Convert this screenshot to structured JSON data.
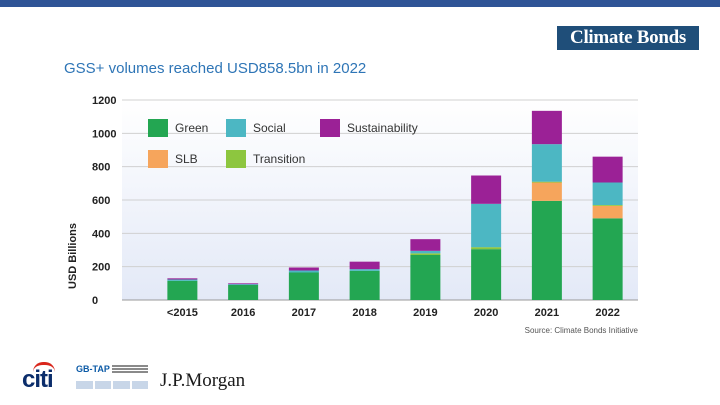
{
  "header": {
    "logo_text": "Climate Bonds",
    "title": "GSS+ volumes reached USD858.5bn in 2022"
  },
  "chart_data": {
    "type": "bar",
    "stacked": true,
    "title": "",
    "xlabel": "",
    "ylabel": "USD Billions",
    "ylim": [
      0,
      1200
    ],
    "yticks": [
      0,
      200,
      400,
      600,
      800,
      1000,
      1200
    ],
    "categories": [
      "<2015",
      "2016",
      "2017",
      "2018",
      "2019",
      "2020",
      "2021",
      "2022"
    ],
    "series": [
      {
        "name": "Green",
        "color": "#23a652",
        "values": [
          115,
          90,
          165,
          175,
          270,
          305,
          595,
          490
        ]
      },
      {
        "name": "SLB",
        "color": "#f6a55c",
        "values": [
          0,
          0,
          0,
          0,
          0,
          0,
          110,
          75
        ]
      },
      {
        "name": "Transition",
        "color": "#8dc63f",
        "values": [
          0,
          0,
          0,
          0,
          10,
          12,
          5,
          5
        ]
      },
      {
        "name": "Social",
        "color": "#4cb7c3",
        "values": [
          8,
          5,
          12,
          10,
          15,
          260,
          225,
          135
        ]
      },
      {
        "name": "Sustainability",
        "color": "#9b2196",
        "values": [
          7,
          5,
          18,
          45,
          70,
          170,
          200,
          155
        ]
      }
    ],
    "legend_order": [
      "Green",
      "Social",
      "Sustainability",
      "SLB",
      "Transition"
    ],
    "legend_position": "top-left",
    "source": "Source: Climate Bonds Initiative"
  },
  "footer": {
    "citi": "citi",
    "gbtap": "GB-TAP",
    "jpmorgan": "J.P.Morgan"
  }
}
